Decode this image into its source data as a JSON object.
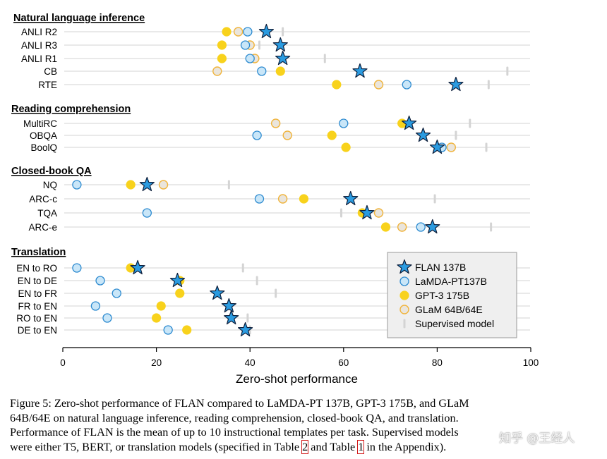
{
  "chart_data": {
    "type": "scatter",
    "xlabel": "Zero-shot performance",
    "xlim": [
      0,
      100
    ],
    "xticks": [
      0,
      20,
      40,
      60,
      80,
      100
    ],
    "grid": "horizontal row guides",
    "legend_position": "bottom-right",
    "legend": [
      {
        "key": "flan",
        "label": "FLAN 137B"
      },
      {
        "key": "lamda",
        "label": "LaMDA-PT137B"
      },
      {
        "key": "gpt3",
        "label": "GPT-3 175B"
      },
      {
        "key": "glam",
        "label": "GLaM 64B/64E"
      },
      {
        "key": "supervised",
        "label": "Supervised model"
      }
    ],
    "colors": {
      "flan_fill": "#2b9be0",
      "flan_stroke": "#0d1f3c",
      "lamda_fill": "#c9e6f8",
      "lamda_stroke": "#2e8bd0",
      "gpt3_fill": "#f8d21c",
      "glam_fill": "#eae5dc",
      "glam_stroke": "#f0b43c",
      "supervised": "#d4d4d4",
      "guide": "#e2e2e2"
    },
    "sections": [
      {
        "title": "Natural language inference",
        "tasks": [
          {
            "name": "ANLI R2",
            "flan": 43.5,
            "lamda": 39.5,
            "gpt3": 35.0,
            "glam": 37.5,
            "supervised": 47.0
          },
          {
            "name": "ANLI R3",
            "flan": 46.5,
            "lamda": 39.0,
            "gpt3": 34.0,
            "glam": 40.0,
            "supervised": 42.0
          },
          {
            "name": "ANLI R1",
            "flan": 47.0,
            "lamda": 40.0,
            "gpt3": 34.0,
            "glam": 41.0,
            "supervised": 56.0
          },
          {
            "name": "CB",
            "flan": 63.5,
            "lamda": 42.5,
            "gpt3": 46.5,
            "glam": 33.0,
            "supervised": 95.0
          },
          {
            "name": "RTE",
            "flan": 84.0,
            "lamda": 73.5,
            "gpt3": 58.5,
            "glam": 67.5,
            "supervised": 91.0
          }
        ]
      },
      {
        "title": "Reading comprehension",
        "tasks": [
          {
            "name": "MultiRC",
            "flan": 74.0,
            "lamda": 60.0,
            "gpt3": 72.5,
            "glam": 45.5,
            "supervised": 87.0
          },
          {
            "name": "OBQA",
            "flan": 77.0,
            "lamda": 41.5,
            "gpt3": 57.5,
            "glam": 48.0,
            "supervised": 84.0
          },
          {
            "name": "BoolQ",
            "flan": 80.0,
            "lamda": 81.0,
            "gpt3": 60.5,
            "glam": 83.0,
            "supervised": 90.5
          }
        ]
      },
      {
        "title": "Closed-book QA",
        "tasks": [
          {
            "name": "NQ",
            "flan": 18.0,
            "lamda": 3.0,
            "gpt3": 14.5,
            "glam": 21.5,
            "supervised": 35.5
          },
          {
            "name": "ARC-c",
            "flan": 61.5,
            "lamda": 42.0,
            "gpt3": 51.5,
            "glam": 47.0,
            "supervised": 79.5
          },
          {
            "name": "TQA",
            "flan": 65.0,
            "lamda": 18.0,
            "gpt3": 64.0,
            "glam": 67.5,
            "supervised": 59.5
          },
          {
            "name": "ARC-e",
            "flan": 79.0,
            "lamda": 76.5,
            "gpt3": 69.0,
            "glam": 72.5,
            "supervised": 91.5
          }
        ]
      },
      {
        "title": "Translation",
        "tasks": [
          {
            "name": "EN to RO",
            "flan": 16.0,
            "lamda": 3.0,
            "gpt3": 14.5,
            "glam": null,
            "supervised": 38.5
          },
          {
            "name": "EN to DE",
            "flan": 24.5,
            "lamda": 8.0,
            "gpt3": 25.0,
            "glam": null,
            "supervised": 41.5
          },
          {
            "name": "EN to FR",
            "flan": 33.0,
            "lamda": 11.5,
            "gpt3": 25.0,
            "glam": null,
            "supervised": 45.5
          },
          {
            "name": "FR to EN",
            "flan": 35.5,
            "lamda": 7.0,
            "gpt3": 21.0,
            "glam": null,
            "supervised": 35.5
          },
          {
            "name": "RO to EN",
            "flan": 36.0,
            "lamda": 9.5,
            "gpt3": 20.0,
            "glam": null,
            "supervised": 39.5
          },
          {
            "name": "DE to EN",
            "flan": 39.0,
            "lamda": 22.5,
            "gpt3": 26.5,
            "glam": null,
            "supervised": 40.0
          }
        ]
      }
    ]
  },
  "caption": {
    "line1": "Figure 5: Zero-shot performance of FLAN compared to LaMDA-PT 137B, GPT-3 175B, and GLaM",
    "line2": "64B/64E on natural language inference, reading comprehension, closed-book QA, and translation.",
    "line3": "Performance of FLAN is the mean of up to 10 instructional templates per task. Supervised models",
    "line4_a": "were either T5, BERT, or translation models (specified in Table ",
    "table_ref_1": "2",
    "line4_b": " and Table ",
    "table_ref_2": "1",
    "line4_c": " in the Appendix)."
  },
  "watermark": "知乎 @王经人"
}
